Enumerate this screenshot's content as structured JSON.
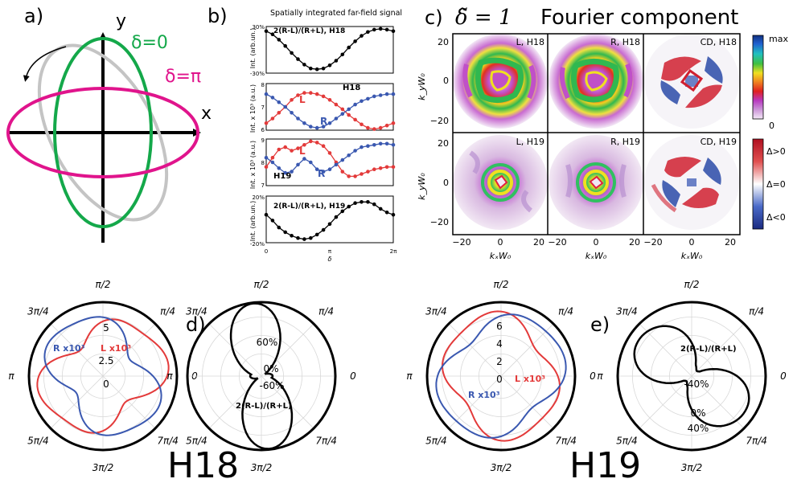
{
  "colors": {
    "green": "#14a84a",
    "magenta": "#e0148c",
    "gray": "#c4c4c4",
    "red": "#e33a3a",
    "blue": "#3a58b0",
    "black": "#000000"
  },
  "panel_a": {
    "label": "a)",
    "x_label": "x",
    "y_label": "y",
    "delta0": "δ=0",
    "deltapi": "δ=π"
  },
  "panel_b": {
    "label": "b)",
    "title": "Spatially integrated far-field signal",
    "x_ticks": [
      "0",
      "π",
      "2π"
    ],
    "x_label": "δ",
    "sub1": {
      "annot": "2(R-L)/(R+L), H18",
      "ylabel": "Int. (arb.un.)",
      "yticks": [
        "30%",
        "-30%"
      ]
    },
    "sub2": {
      "annot": "H18",
      "ylabel": "Int. x 10³ (a.u.)",
      "yticks": [
        "8",
        "7",
        "6"
      ],
      "L": "L",
      "R": "R"
    },
    "sub3": {
      "annot": "H19",
      "ylabel": "Int. x 10³ (a.u.)",
      "yticks": [
        "9",
        "8",
        "7"
      ],
      "L": "L",
      "R": "R"
    },
    "sub4": {
      "annot": "2(R-L)/(R+L), H19",
      "ylabel": "Int. (arb.un.)",
      "yticks": [
        "20%",
        "-20%"
      ]
    }
  },
  "panel_c": {
    "label": "c)",
    "title_math": "δ̃ = 1",
    "title_rest": "Fourier component",
    "panels": [
      "L, H18",
      "R, H18",
      "CD, H18",
      "L, H19",
      "R, H19",
      "CD, H19"
    ],
    "x_ticks": [
      "−20",
      "0",
      "20"
    ],
    "y_ticks": [
      "20",
      "0",
      "−20"
    ],
    "x_label": "kₓW₀",
    "y_label": "k_yW₀",
    "cbar1": {
      "top": "max",
      "bottom": "0"
    },
    "cbar2": {
      "top": "Δ>0",
      "mid": "Δ=0",
      "bottom": "Δ<0"
    }
  },
  "polar_angles": {
    "a90": "π/2",
    "a45": "π/4",
    "a0": "0",
    "a135": "3π/4",
    "a180": "π",
    "a225": "5π/4",
    "a270": "3π/2",
    "a315": "7π/4"
  },
  "panel_d": {
    "label": "d)",
    "H18_r_ticks": [
      "5",
      "2.5",
      "0"
    ],
    "H18_R": "R x10³",
    "H18_L": "L x10³",
    "cd_r_ticks": [
      "60%",
      "0%",
      "-60%"
    ],
    "cd_annot": "2(R-L)/(R+L)",
    "caption": "H18"
  },
  "panel_e": {
    "label": "e)",
    "H19_r_ticks": [
      "6",
      "4",
      "2",
      "0"
    ],
    "H19_R": "R x10³",
    "H19_L": "L x10³",
    "cd_r_ticks": [
      "-40%",
      "0%",
      "40%"
    ],
    "cd_annot": "2(R-L)/(R+L)",
    "caption": "H19"
  },
  "chart_data": [
    {
      "type": "line",
      "title": "2(R-L)/(R+L), H18",
      "xlabel": "δ",
      "ylabel": "Int. (arb.un.)",
      "xlim": [
        0,
        6.283
      ],
      "ylim": [
        -30,
        30
      ],
      "series": [
        {
          "x": [
            0,
            0.314,
            0.628,
            0.942,
            1.257,
            1.571,
            1.885,
            2.199,
            2.513,
            2.827,
            3.142,
            3.456,
            3.77,
            4.084,
            4.398,
            4.712,
            5.027,
            5.341,
            5.655,
            5.969,
            6.283
          ],
          "values": [
            24,
            20,
            13,
            5,
            -4,
            -12,
            -19,
            -24,
            -25,
            -24,
            -20,
            -14,
            -6,
            3,
            11,
            18,
            23,
            26,
            27,
            26,
            24
          ]
        }
      ]
    },
    {
      "type": "line",
      "title": "H18",
      "xlabel": "δ",
      "ylabel": "Int. x 10³ (a.u.)",
      "xlim": [
        0,
        6.283
      ],
      "ylim": [
        6,
        8
      ],
      "series": [
        {
          "name": "L",
          "x": [
            0,
            0.314,
            0.628,
            0.942,
            1.257,
            1.571,
            1.885,
            2.199,
            2.513,
            2.827,
            3.142,
            3.456,
            3.77,
            4.084,
            4.398,
            4.712,
            5.027,
            5.341,
            5.655,
            5.969,
            6.283
          ],
          "values": [
            6.3,
            6.5,
            6.75,
            7.0,
            7.3,
            7.5,
            7.6,
            7.6,
            7.55,
            7.45,
            7.3,
            7.1,
            6.9,
            6.65,
            6.45,
            6.25,
            6.1,
            6.05,
            6.1,
            6.2,
            6.3
          ]
        },
        {
          "name": "R",
          "x": [
            0,
            0.314,
            0.628,
            0.942,
            1.257,
            1.571,
            1.885,
            2.199,
            2.513,
            2.827,
            3.142,
            3.456,
            3.77,
            4.084,
            4.398,
            4.712,
            5.027,
            5.341,
            5.655,
            5.969,
            6.283
          ],
          "values": [
            7.55,
            7.4,
            7.2,
            7.0,
            6.75,
            6.5,
            6.3,
            6.15,
            6.1,
            6.15,
            6.3,
            6.5,
            6.7,
            6.9,
            7.1,
            7.25,
            7.35,
            7.45,
            7.5,
            7.55,
            7.55
          ]
        }
      ]
    },
    {
      "type": "line",
      "title": "H19",
      "xlabel": "δ",
      "ylabel": "Int. x 10³ (a.u.)",
      "xlim": [
        0,
        6.283
      ],
      "ylim": [
        7,
        9
      ],
      "series": [
        {
          "name": "L",
          "x": [
            0,
            0.314,
            0.628,
            0.942,
            1.257,
            1.571,
            1.885,
            2.199,
            2.513,
            2.827,
            3.142,
            3.456,
            3.77,
            4.084,
            4.398,
            4.712,
            5.027,
            5.341,
            5.655,
            5.969,
            6.283
          ],
          "values": [
            7.8,
            8.2,
            8.55,
            8.65,
            8.5,
            8.6,
            8.75,
            8.9,
            8.85,
            8.7,
            8.4,
            8.0,
            7.6,
            7.4,
            7.4,
            7.5,
            7.6,
            7.7,
            7.75,
            7.8,
            7.8
          ]
        },
        {
          "name": "R",
          "x": [
            0,
            0.314,
            0.628,
            0.942,
            1.257,
            1.571,
            1.885,
            2.199,
            2.513,
            2.827,
            3.142,
            3.456,
            3.77,
            4.084,
            4.398,
            4.712,
            5.027,
            5.341,
            5.655,
            5.969,
            6.283
          ],
          "values": [
            8.2,
            8.0,
            7.75,
            7.55,
            7.6,
            7.9,
            8.15,
            8.0,
            7.7,
            7.6,
            7.7,
            7.9,
            8.1,
            8.3,
            8.5,
            8.65,
            8.7,
            8.75,
            8.8,
            8.8,
            8.75
          ]
        }
      ]
    },
    {
      "type": "line",
      "title": "2(R-L)/(R+L), H19",
      "xlabel": "δ",
      "ylabel": "Int. (arb.un.)",
      "xlim": [
        0,
        6.283
      ],
      "ylim": [
        -20,
        20
      ],
      "series": [
        {
          "x": [
            0,
            0.314,
            0.628,
            0.942,
            1.257,
            1.571,
            1.885,
            2.199,
            2.513,
            2.827,
            3.142,
            3.456,
            3.77,
            4.084,
            4.398,
            4.712,
            5.027,
            5.341,
            5.655,
            5.969,
            6.283
          ],
          "values": [
            4,
            -1,
            -7,
            -11,
            -14,
            -16,
            -17,
            -16,
            -13,
            -9,
            -4,
            2,
            7,
            11,
            14,
            15,
            15,
            13,
            9,
            6,
            4
          ]
        }
      ]
    }
  ]
}
